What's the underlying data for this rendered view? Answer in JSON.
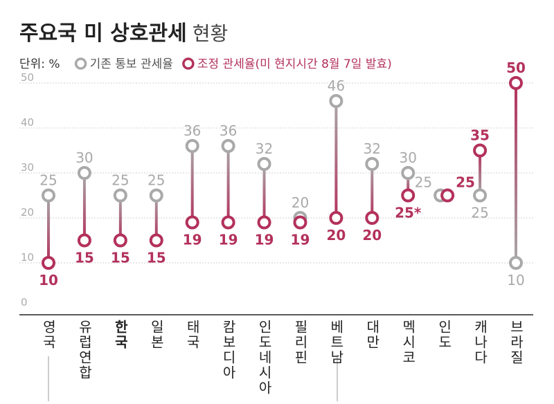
{
  "chart_data": {
    "type": "dumbbell",
    "title": "주요국 미 상호관세",
    "title_suffix": "현황",
    "unit_label": "단위: %",
    "categories": [
      "영국",
      "유럽연합",
      "한국",
      "일본",
      "태국",
      "캄보디아",
      "인도네시아",
      "필리핀",
      "베트남",
      "대만",
      "멕시코",
      "인도",
      "캐나다",
      "브라질"
    ],
    "highlight_category": "한국",
    "series": [
      {
        "name": "기존 통보 관세율",
        "color": "#a9a9a9",
        "values": [
          25,
          30,
          25,
          25,
          36,
          36,
          32,
          20,
          46,
          32,
          30,
          25,
          25,
          10
        ]
      },
      {
        "name": "조정 관세율(미 현지시간 8월 7일 발효)",
        "color": "#b3315b",
        "values": [
          10,
          15,
          15,
          15,
          19,
          19,
          19,
          19,
          20,
          20,
          25,
          25,
          35,
          50
        ],
        "value_labels": [
          "10",
          "15",
          "15",
          "15",
          "19",
          "19",
          "19",
          "19",
          "20",
          "20",
          "25*",
          "25",
          "35",
          "50"
        ]
      }
    ],
    "ylim": [
      0,
      50
    ],
    "yticks": [
      0,
      10,
      20,
      30,
      40,
      50
    ],
    "grid": true
  }
}
